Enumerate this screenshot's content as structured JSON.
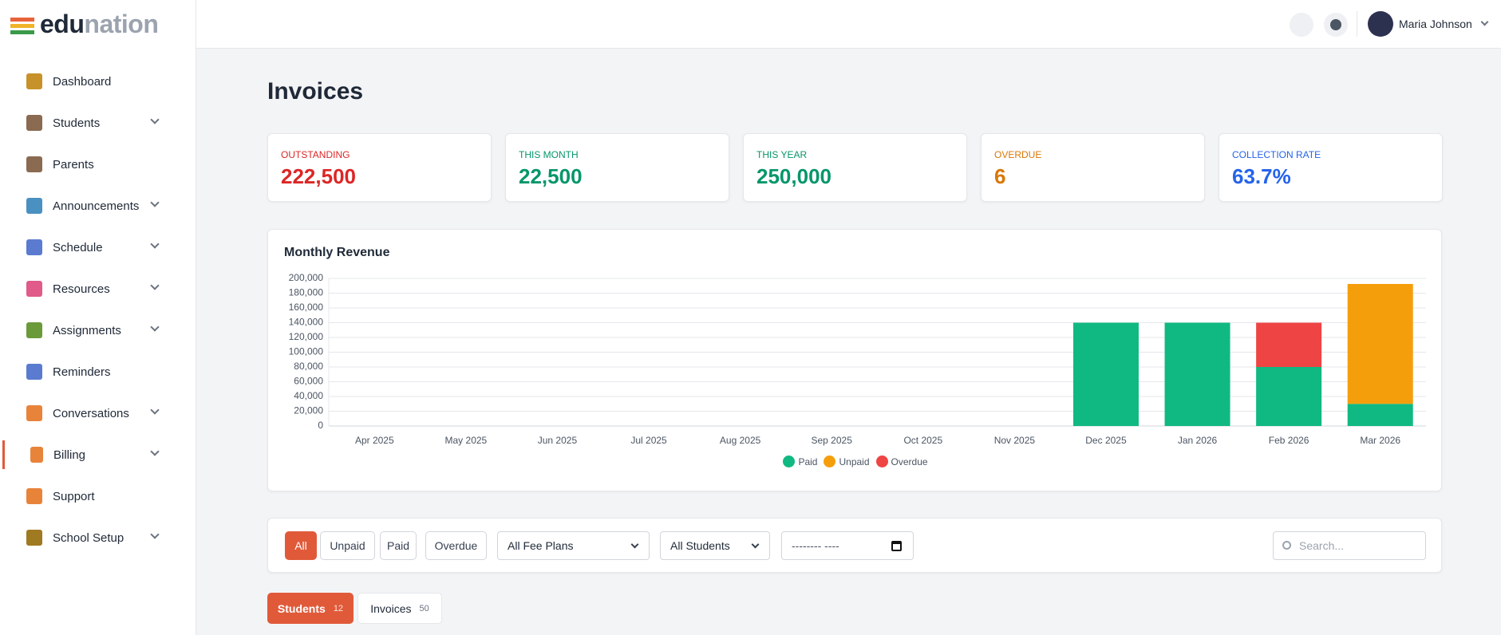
{
  "logo": {
    "part1": "edu",
    "part2": "nation"
  },
  "header": {
    "user_name": "Maria Johnson"
  },
  "sidebar": {
    "items": [
      {
        "label": "Dashboard",
        "has_submenu": false,
        "active": false
      },
      {
        "label": "Students",
        "has_submenu": true,
        "active": false
      },
      {
        "label": "Parents",
        "has_submenu": false,
        "active": false
      },
      {
        "label": "Announcements",
        "has_submenu": true,
        "active": false
      },
      {
        "label": "Schedule",
        "has_submenu": true,
        "active": false
      },
      {
        "label": "Resources",
        "has_submenu": true,
        "active": false
      },
      {
        "label": "Assignments",
        "has_submenu": true,
        "active": false
      },
      {
        "label": "Reminders",
        "has_submenu": false,
        "active": false
      },
      {
        "label": "Conversations",
        "has_submenu": true,
        "active": false
      },
      {
        "label": "Billing",
        "has_submenu": true,
        "active": true
      },
      {
        "label": "Support",
        "has_submenu": false,
        "active": false
      },
      {
        "label": "School Setup",
        "has_submenu": true,
        "active": false
      }
    ]
  },
  "page_title": "Invoices",
  "stats": [
    {
      "label": "OUTSTANDING",
      "value": "222,500",
      "color": "#dc2626"
    },
    {
      "label": "THIS MONTH",
      "value": "22,500",
      "color": "#059669"
    },
    {
      "label": "THIS YEAR",
      "value": "250,000",
      "color": "#059669"
    },
    {
      "label": "OVERDUE",
      "value": "6",
      "color": "#d97706"
    },
    {
      "label": "COLLECTION RATE",
      "value": "63.7%",
      "color": "#2563eb"
    }
  ],
  "chart_data": {
    "type": "stacked_bar",
    "title": "Monthly Revenue",
    "categories": [
      "Apr 2025",
      "May 2025",
      "Jun 2025",
      "Jul 2025",
      "Aug 2025",
      "Sep 2025",
      "Oct 2025",
      "Nov 2025",
      "Dec 2025",
      "Jan 2026",
      "Feb 2026",
      "Mar 2026"
    ],
    "series": [
      {
        "name": "Paid",
        "color": "#10b981",
        "values": [
          0,
          0,
          0,
          0,
          0,
          0,
          0,
          0,
          140000,
          140000,
          80000,
          30000
        ]
      },
      {
        "name": "Unpaid",
        "color": "#f59e0b",
        "values": [
          0,
          0,
          0,
          0,
          0,
          0,
          0,
          0,
          0,
          0,
          0,
          162500
        ]
      },
      {
        "name": "Overdue",
        "color": "#ef4444",
        "values": [
          0,
          0,
          0,
          0,
          0,
          0,
          0,
          0,
          0,
          0,
          60000,
          0
        ]
      }
    ],
    "ylim": [
      0,
      200000
    ],
    "yticks": [
      0,
      {
        "value": 20000,
        "label": "20,000"
      },
      {
        "value": 40000,
        "label": "40,000"
      },
      {
        "value": 60000,
        "label": "60,000"
      },
      {
        "value": 80000,
        "label": "80,000"
      },
      {
        "value": 100000,
        "label": "100,000"
      },
      {
        "value": 120000,
        "label": "120,000"
      },
      {
        "value": 140000,
        "label": "140,000"
      },
      {
        "value": 160000,
        "label": "160,000"
      },
      {
        "value": 180000,
        "label": "180,000"
      },
      {
        "value": 200000,
        "label": "200,000"
      }
    ],
    "grid": true,
    "legend": "bottom"
  },
  "filters": {
    "status_buttons": [
      "All",
      "Unpaid",
      "Paid",
      "Overdue"
    ],
    "fee_plan": "All Fee Plans",
    "student": "All Students",
    "date_placeholder": "-------- ----",
    "search_placeholder": "Search..."
  },
  "tabs": [
    {
      "label": "Students",
      "count": "12"
    },
    {
      "label": "Invoices",
      "count": "50"
    }
  ]
}
